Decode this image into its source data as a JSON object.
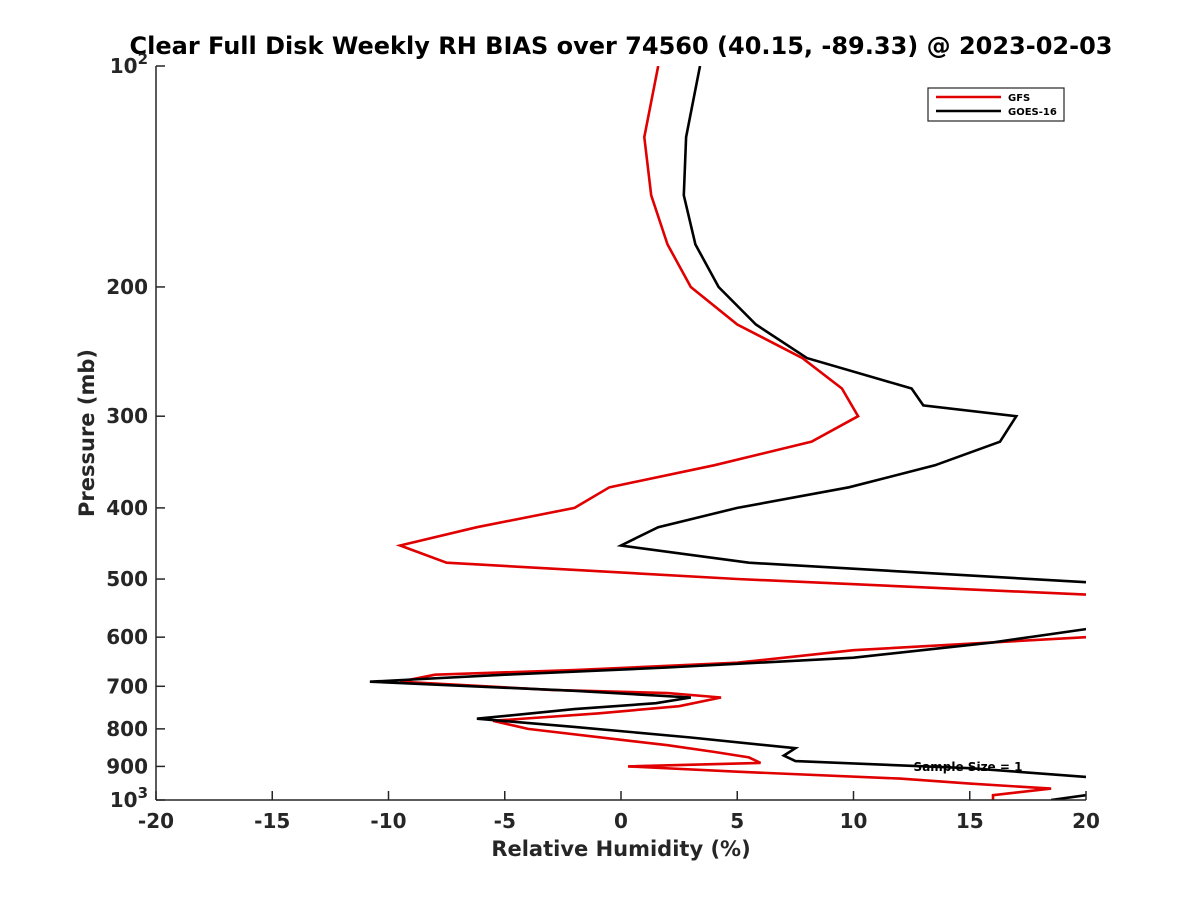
{
  "chart_data": {
    "type": "line",
    "title": "Clear Full Disk Weekly RH BIAS over 74560 (40.15, -89.33) @ 2023-02-03",
    "xlabel": "Relative Humidity (%)",
    "ylabel": "Pressure (mb)",
    "xlim": [
      -20,
      20
    ],
    "ylim": [
      100,
      1000
    ],
    "y_scale": "log",
    "y_reversed": true,
    "grid": false,
    "legend_position": "top-right",
    "annotation": "Sample Size = 1",
    "x_ticks": [
      {
        "value": -20,
        "label": "-20"
      },
      {
        "value": -15,
        "label": "-15"
      },
      {
        "value": -10,
        "label": "-10"
      },
      {
        "value": -5,
        "label": "-5"
      },
      {
        "value": 0,
        "label": "0"
      },
      {
        "value": 5,
        "label": "5"
      },
      {
        "value": 10,
        "label": "10"
      },
      {
        "value": 15,
        "label": "15"
      },
      {
        "value": 20,
        "label": "20"
      }
    ],
    "y_ticks": [
      {
        "value": 100,
        "base": "10",
        "exp": "2"
      },
      {
        "value": 200,
        "base": "200",
        "exp": ""
      },
      {
        "value": 300,
        "base": "300",
        "exp": ""
      },
      {
        "value": 400,
        "base": "400",
        "exp": ""
      },
      {
        "value": 500,
        "base": "500",
        "exp": ""
      },
      {
        "value": 600,
        "base": "600",
        "exp": ""
      },
      {
        "value": 700,
        "base": "700",
        "exp": ""
      },
      {
        "value": 800,
        "base": "800",
        "exp": ""
      },
      {
        "value": 900,
        "base": "900",
        "exp": ""
      },
      {
        "value": 1000,
        "base": "10",
        "exp": "3"
      }
    ],
    "series": [
      {
        "name": "GFS",
        "color": "#e00000",
        "points": [
          [
            1.6,
            100
          ],
          [
            1.0,
            125
          ],
          [
            1.3,
            150
          ],
          [
            2.0,
            175
          ],
          [
            3.0,
            200
          ],
          [
            5.0,
            225
          ],
          [
            7.8,
            250
          ],
          [
            9.5,
            275
          ],
          [
            10.2,
            300
          ],
          [
            8.2,
            325
          ],
          [
            4.0,
            350
          ],
          [
            -0.5,
            375
          ],
          [
            -2.0,
            400
          ],
          [
            -6.2,
            425
          ],
          [
            -9.5,
            450
          ],
          [
            -7.5,
            475
          ],
          [
            5.0,
            500
          ],
          [
            20.0,
            525
          ]
        ],
        "points_lower": [
          [
            20.0,
            600
          ],
          [
            10.0,
            625
          ],
          [
            5.0,
            650
          ],
          [
            -2.0,
            665
          ],
          [
            -8.0,
            675
          ],
          [
            -9.5,
            690
          ],
          [
            -3.0,
            708
          ],
          [
            2.0,
            715
          ],
          [
            4.3,
            725
          ],
          [
            2.5,
            745
          ],
          [
            -1.0,
            762
          ],
          [
            -5.5,
            780
          ],
          [
            -4.0,
            800
          ],
          [
            0.0,
            828
          ],
          [
            2.0,
            842
          ],
          [
            4.0,
            860
          ],
          [
            5.5,
            875
          ],
          [
            6.0,
            890
          ],
          [
            0.3,
            900
          ],
          [
            5.0,
            915
          ],
          [
            12.0,
            935
          ],
          [
            15.0,
            950
          ],
          [
            18.5,
            965
          ],
          [
            16.0,
            985
          ],
          [
            16.0,
            1000
          ]
        ]
      },
      {
        "name": "GOES-16",
        "color": "#000000",
        "points": [
          [
            3.4,
            100
          ],
          [
            2.8,
            125
          ],
          [
            2.7,
            150
          ],
          [
            3.2,
            175
          ],
          [
            4.2,
            200
          ],
          [
            5.8,
            225
          ],
          [
            8.0,
            250
          ],
          [
            12.5,
            275
          ],
          [
            13.0,
            290
          ],
          [
            17.0,
            300
          ],
          [
            16.3,
            325
          ],
          [
            13.5,
            350
          ],
          [
            9.8,
            375
          ],
          [
            5.0,
            400
          ],
          [
            1.6,
            425
          ],
          [
            0.0,
            450
          ],
          [
            5.5,
            475
          ],
          [
            20.0,
            505
          ]
        ],
        "points_lower": [
          [
            20.0,
            585
          ],
          [
            16.0,
            610
          ],
          [
            10.0,
            640
          ],
          [
            2.0,
            660
          ],
          [
            -5.0,
            675
          ],
          [
            -10.8,
            690
          ],
          [
            -2.0,
            710
          ],
          [
            3.0,
            725
          ],
          [
            1.5,
            738
          ],
          [
            -2.0,
            752
          ],
          [
            -6.2,
            775
          ],
          [
            -2.0,
            795
          ],
          [
            3.0,
            822
          ],
          [
            7.5,
            850
          ],
          [
            7.0,
            870
          ],
          [
            7.5,
            885
          ],
          [
            15.0,
            905
          ],
          [
            20.0,
            930
          ]
        ],
        "points_tail": [
          [
            18.5,
            1000
          ],
          [
            20.0,
            985
          ]
        ]
      }
    ]
  }
}
